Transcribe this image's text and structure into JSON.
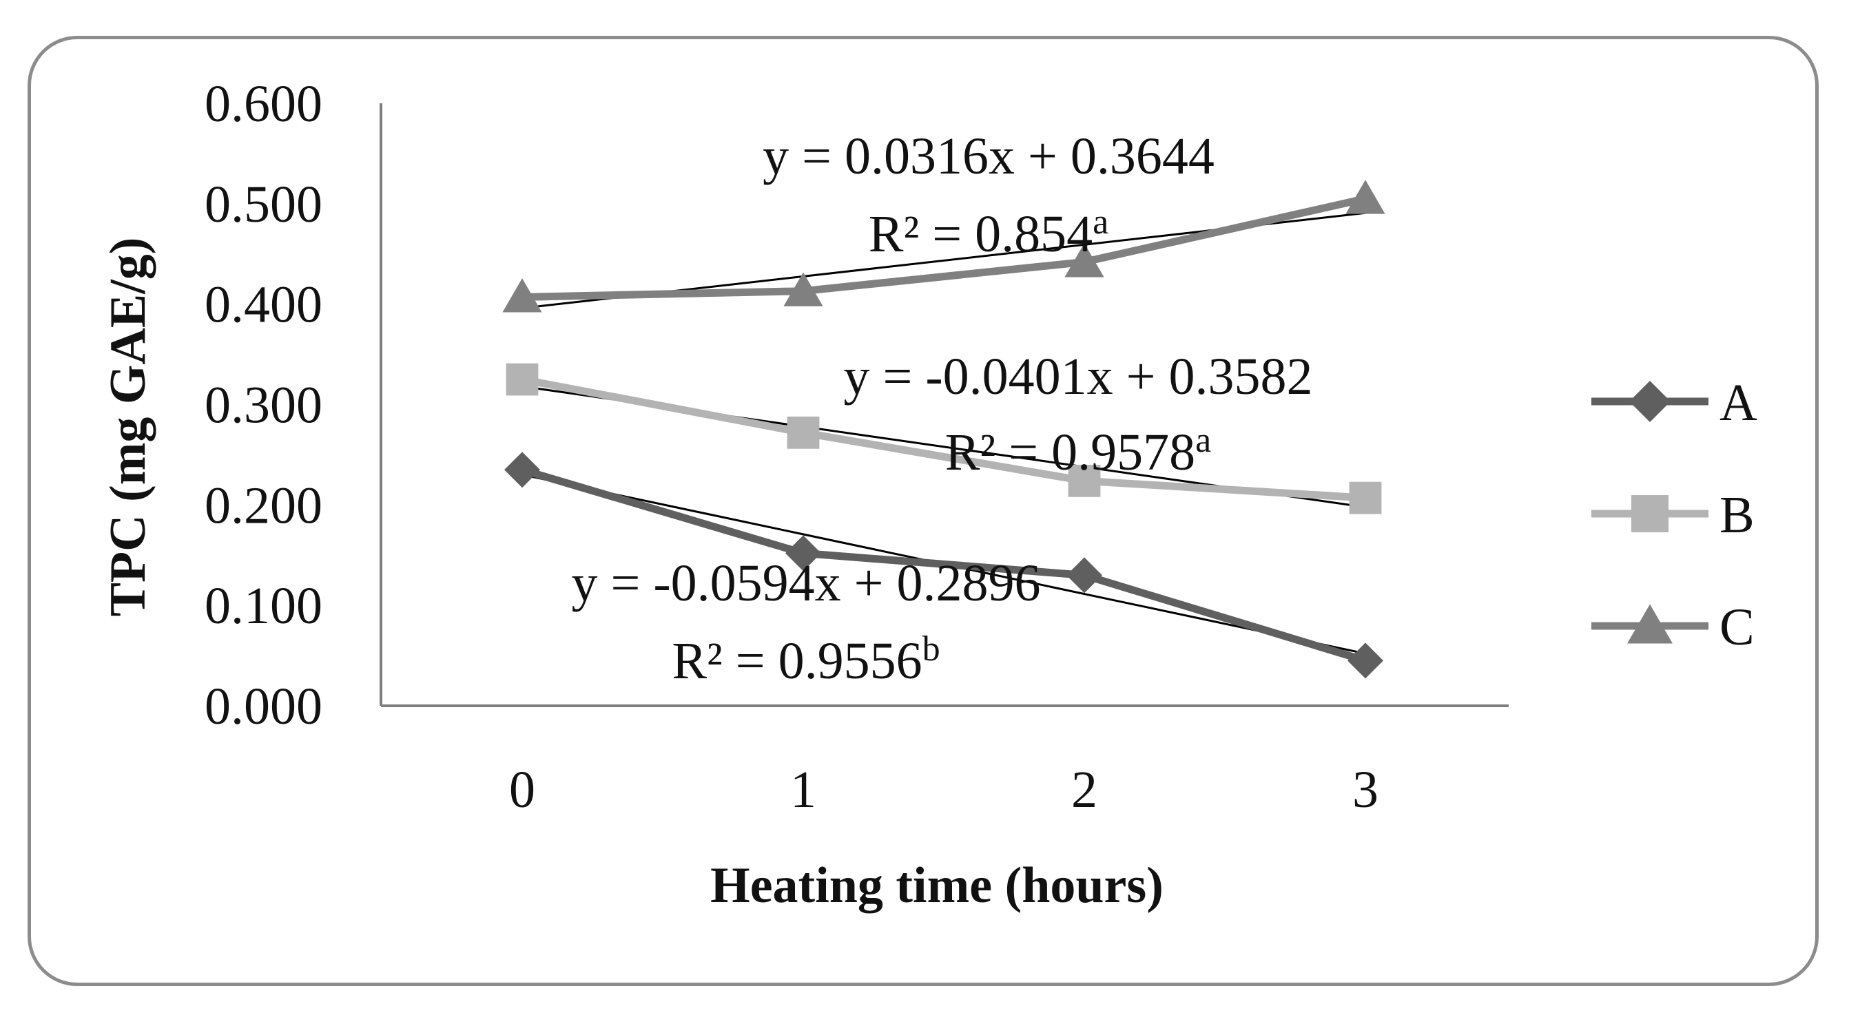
{
  "chart_data": {
    "type": "line",
    "title": "",
    "xlabel": "Heating time (hours)",
    "ylabel": "TPC (mg GAE/g)",
    "categories": [
      "0",
      "1",
      "2",
      "3"
    ],
    "x": [
      0,
      1,
      2,
      3
    ],
    "ylim": [
      0,
      0.6
    ],
    "yticks": [
      "0.000",
      "0.100",
      "0.200",
      "0.300",
      "0.400",
      "0.500",
      "0.600"
    ],
    "grid": false,
    "legend_position": "right",
    "series": [
      {
        "name": "A",
        "marker": "diamond",
        "color": "#5f5f5f",
        "values": [
          0.235,
          0.152,
          0.13,
          0.045
        ]
      },
      {
        "name": "B",
        "marker": "square",
        "color": "#b3b3b3",
        "values": [
          0.325,
          0.272,
          0.224,
          0.207
        ]
      },
      {
        "name": "C",
        "marker": "triangle",
        "color": "#808080",
        "values": [
          0.407,
          0.413,
          0.442,
          0.505
        ]
      }
    ],
    "trendlines": [
      {
        "series": "A",
        "slope": -0.0594,
        "intercept": 0.2896,
        "equation": "y = -0.0594x + 0.2896",
        "r2_label": "R² = 0.9556",
        "superscript": "b"
      },
      {
        "series": "B",
        "slope": -0.0401,
        "intercept": 0.3582,
        "equation": "y = -0.0401x + 0.3582",
        "r2_label": "R² = 0.9578",
        "superscript": "a"
      },
      {
        "series": "C",
        "slope": 0.0316,
        "intercept": 0.3644,
        "equation": "y = 0.0316x + 0.3644",
        "r2_label": "R² = 0.854",
        "superscript": "a"
      }
    ]
  }
}
